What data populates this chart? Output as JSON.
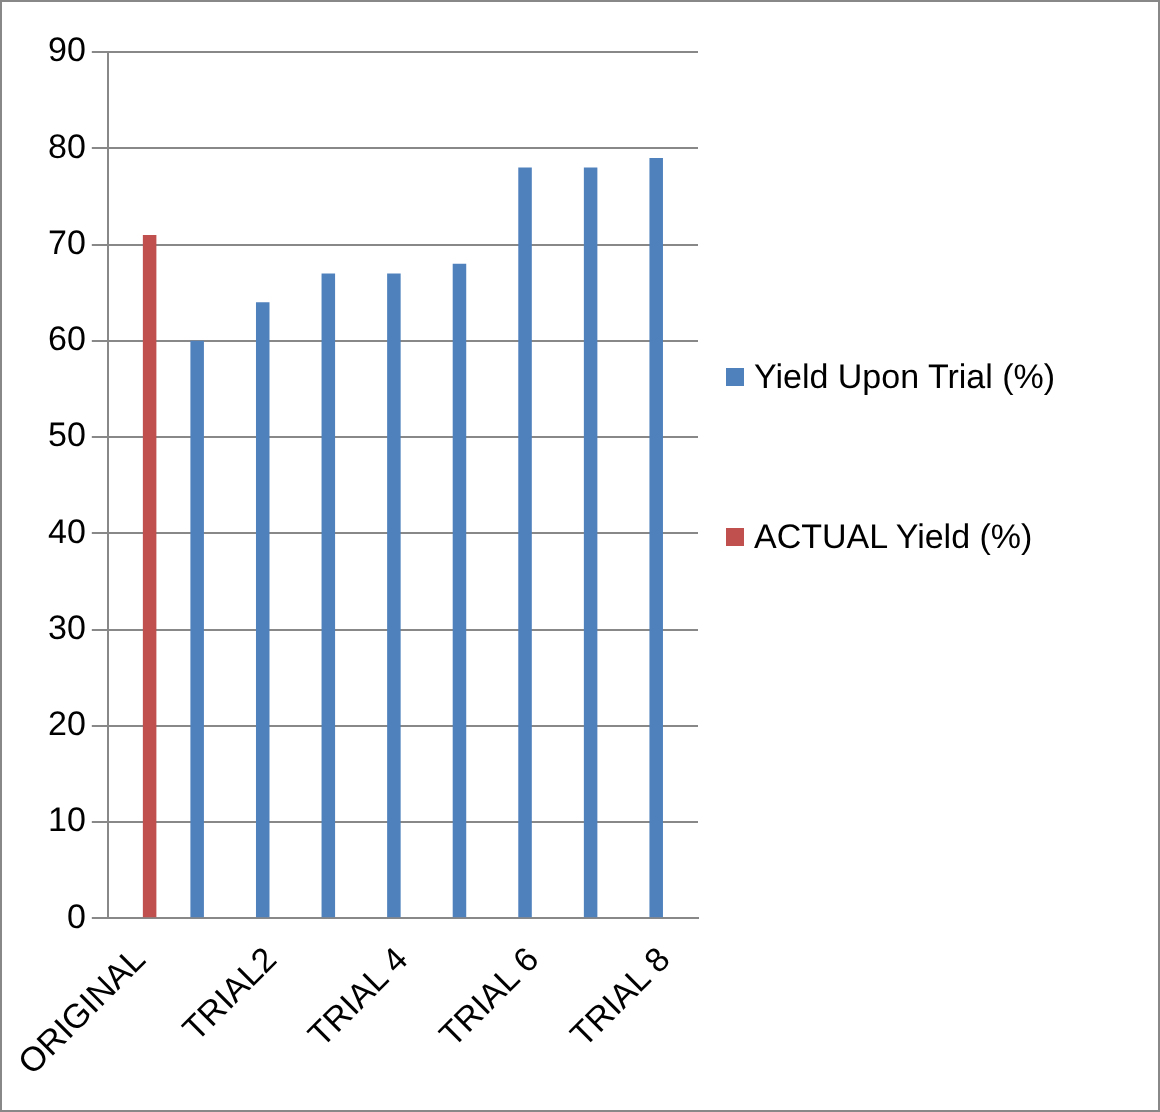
{
  "chart_data": {
    "type": "bar",
    "categories": [
      "ORIGINAL",
      null,
      "TRIAL2",
      null,
      "TRIAL 4",
      null,
      "TRIAL 6",
      null,
      "TRIAL 8"
    ],
    "series": [
      {
        "name": "Yield Upon Trial (%)",
        "color": "#4f81bd",
        "values": [
          null,
          60,
          64,
          67,
          67,
          68,
          78,
          78,
          79
        ]
      },
      {
        "name": "ACTUAL Yield (%)",
        "color": "#c0504d",
        "values": [
          71,
          null,
          null,
          null,
          null,
          null,
          null,
          null,
          null
        ]
      }
    ],
    "ylim": [
      0,
      90
    ],
    "yticks": [
      0,
      10,
      20,
      30,
      40,
      50,
      60,
      70,
      80,
      90
    ],
    "grid": "y",
    "legend": "right"
  }
}
